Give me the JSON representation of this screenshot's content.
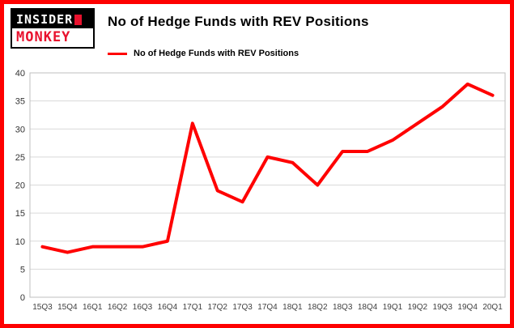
{
  "brand": {
    "line1": "INSIDER",
    "line2": "MONKEY",
    "red": "#e8112d"
  },
  "title": "No of Hedge Funds with REV Positions",
  "legend": {
    "label": "No of Hedge Funds with REV Positions",
    "color": "#ff0000"
  },
  "frame_color": "#fe0000",
  "chart_data": {
    "type": "line",
    "title": "No of Hedge Funds with REV Positions",
    "categories": [
      "15Q3",
      "15Q4",
      "16Q1",
      "16Q2",
      "16Q3",
      "16Q4",
      "17Q1",
      "17Q2",
      "17Q3",
      "17Q4",
      "18Q1",
      "18Q2",
      "18Q3",
      "18Q4",
      "19Q1",
      "19Q2",
      "19Q3",
      "19Q4",
      "20Q1"
    ],
    "values": [
      9,
      8,
      9,
      9,
      9,
      10,
      31,
      19,
      17,
      25,
      24,
      20,
      26,
      26,
      28,
      31,
      34,
      38,
      36
    ],
    "xlabel": "",
    "ylabel": "",
    "ylim": [
      0,
      40
    ],
    "ytick_interval": 5,
    "grid": true,
    "line_color": "#ff0000",
    "legend_position": "top-left"
  }
}
